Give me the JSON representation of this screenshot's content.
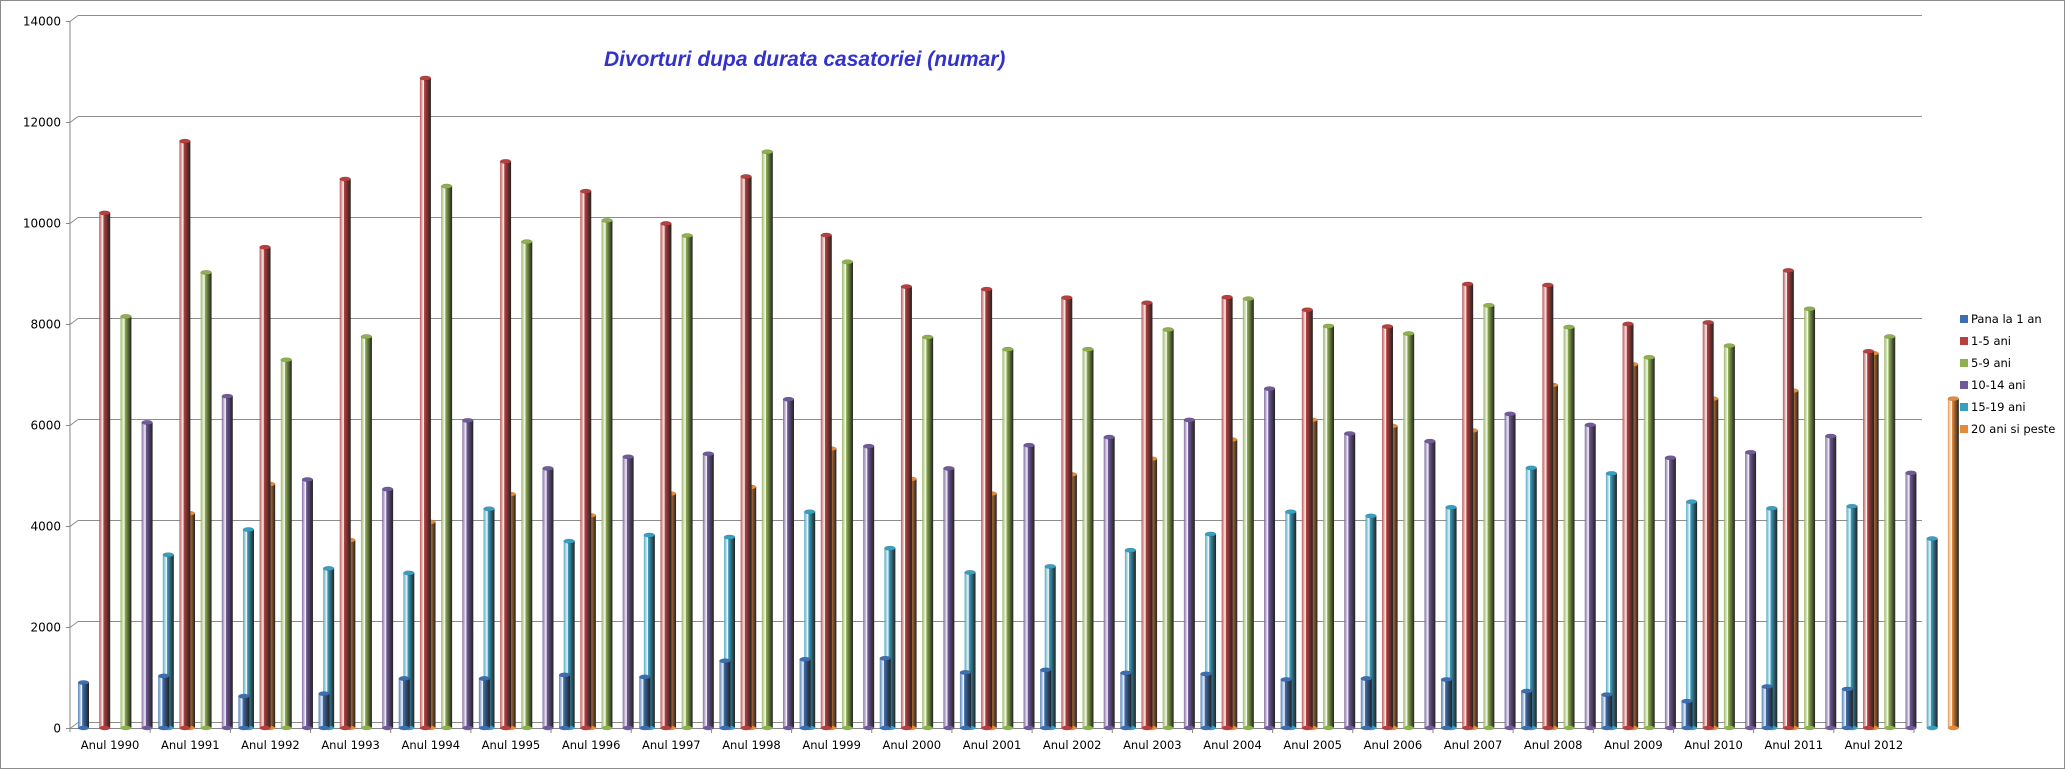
{
  "chart_data": {
    "type": "bar",
    "title": "Divorturi dupa durata casatoriei (numar)",
    "xlabel": "",
    "ylabel": "",
    "ylim": [
      0,
      14000
    ],
    "yticks": [
      0,
      2000,
      4000,
      6000,
      8000,
      10000,
      12000,
      14000
    ],
    "grid": true,
    "legend_position": "right",
    "categories": [
      "Anul 1990",
      "Anul 1991",
      "Anul 1992",
      "Anul 1993",
      "Anul 1994",
      "Anul 1995",
      "Anul 1996",
      "Anul 1997",
      "Anul 1998",
      "Anul 1999",
      "Anul 2000",
      "Anul 2001",
      "Anul 2002",
      "Anul 2003",
      "Anul 2004",
      "Anul 2005",
      "Anul 2006",
      "Anul 2007",
      "Anul 2008",
      "Anul 2009",
      "Anul 2010",
      "Anul 2011",
      "Anul 2012"
    ],
    "series": [
      {
        "name": "Pana la 1 an",
        "color": "#3d6fb0",
        "values": [
          900,
          1030,
          630,
          680,
          980,
          980,
          1050,
          1010,
          1330,
          1360,
          1380,
          1100,
          1150,
          1090,
          1070,
          960,
          980,
          960,
          730,
          660,
          530,
          820,
          770
        ]
      },
      {
        "name": "1-5 ani",
        "color": "#b5403e",
        "values": [
          10200,
          11620,
          9520,
          10870,
          12870,
          11220,
          10630,
          9990,
          10920,
          9760,
          8740,
          8690,
          8520,
          8420,
          8530,
          8280,
          7950,
          8790,
          8770,
          8000,
          8030,
          9060,
          7460
        ]
      },
      {
        "name": "5-9 ani",
        "color": "#8eb050",
        "values": [
          8150,
          9020,
          7290,
          7750,
          10730,
          9630,
          10050,
          9750,
          11410,
          9230,
          7740,
          7500,
          7500,
          7890,
          8500,
          7960,
          7810,
          8370,
          7940,
          7340,
          7570,
          8300,
          7750
        ]
      },
      {
        "name": "10-14 ani",
        "color": "#715a99",
        "values": [
          6050,
          6570,
          4920,
          4730,
          6090,
          5140,
          5370,
          5430,
          6510,
          5580,
          5140,
          5600,
          5760,
          6100,
          6720,
          5830,
          5680,
          6220,
          6000,
          5350,
          5460,
          5780,
          5050
        ]
      },
      {
        "name": "15-19 ani",
        "color": "#3a9fbf",
        "values": [
          3430,
          3930,
          3160,
          3070,
          4340,
          3700,
          3820,
          3780,
          4280,
          3560,
          3080,
          3200,
          3520,
          3840,
          4280,
          4200,
          4370,
          5150,
          5040,
          4480,
          4350,
          4390,
          3750
        ]
      },
      {
        "name": "20 ani si peste",
        "color": "#e58a3a",
        "values": [
          4250,
          4830,
          3720,
          4080,
          4630,
          4210,
          4640,
          4770,
          5530,
          4930,
          4640,
          5020,
          5330,
          5710,
          6100,
          5980,
          5890,
          6790,
          7200,
          6520,
          6680,
          7420,
          6520
        ]
      }
    ]
  }
}
